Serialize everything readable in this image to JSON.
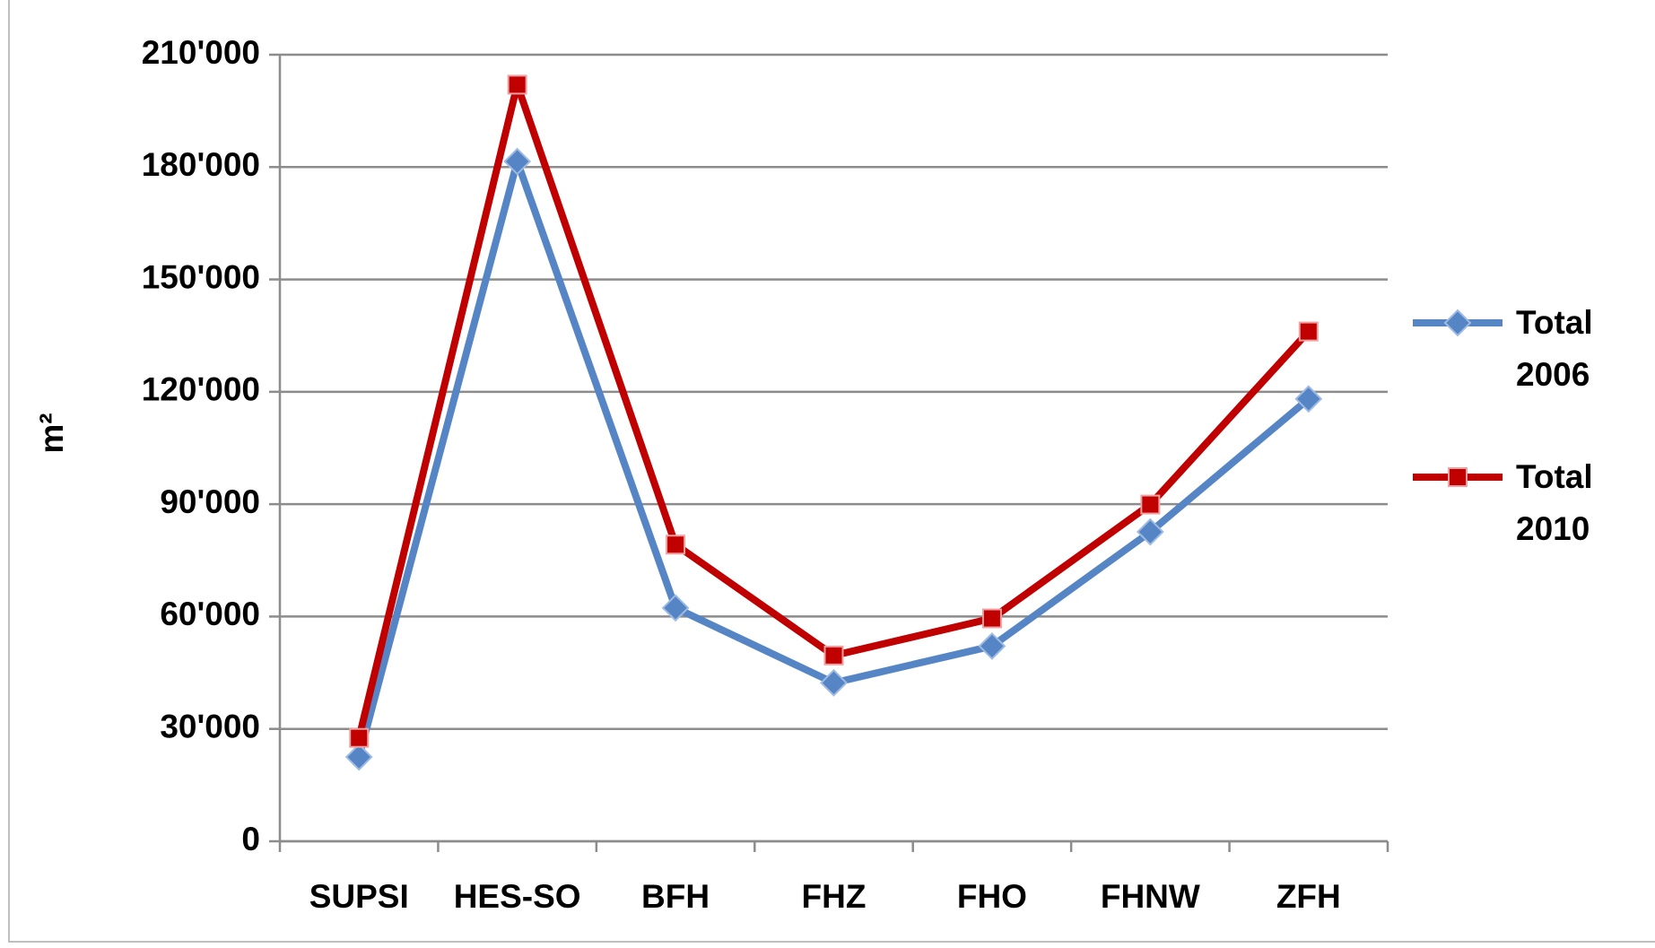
{
  "chart_data": {
    "type": "line",
    "y_label": "m²",
    "categories": [
      "SUPSI",
      "HES-SO",
      "BFH",
      "FHZ",
      "FHO",
      "FHNW",
      "ZFH"
    ],
    "series": [
      {
        "name": "Total 2006",
        "color": "#5585c5",
        "marker": "diamond",
        "values": [
          22500,
          181500,
          62300,
          42300,
          52100,
          82600,
          118100
        ]
      },
      {
        "name": "Total 2010",
        "color": "#c00000",
        "marker": "square",
        "values": [
          27600,
          202000,
          79200,
          49600,
          59500,
          89900,
          136100
        ]
      }
    ],
    "ylim": [
      0,
      210000
    ],
    "yticks": [
      0,
      {
        "value": 30000,
        "label": "30'000"
      },
      {
        "value": 60000,
        "label": "60'000"
      },
      {
        "value": 90000,
        "label": "90'000"
      },
      {
        "value": 120000,
        "label": "120'000"
      },
      {
        "value": 150000,
        "label": "150'000"
      },
      {
        "value": 180000,
        "label": "180'000"
      },
      {
        "value": 210000,
        "label": "210'000"
      }
    ],
    "grid": true,
    "legend": "right"
  }
}
